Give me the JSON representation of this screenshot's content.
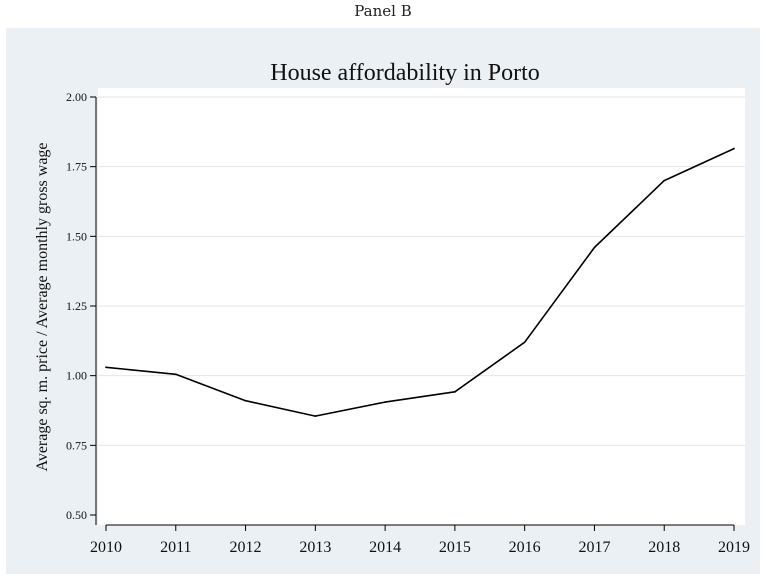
{
  "panel_label": "Panel B",
  "chart_data": {
    "type": "line",
    "title": "House affordability in Porto",
    "xlabel": "",
    "ylabel": "Average sq. m. price / Average monthly gross wage",
    "x": [
      2010,
      2011,
      2012,
      2013,
      2014,
      2015,
      2016,
      2017,
      2018,
      2019
    ],
    "y_ticks": [
      "0.50",
      "0.75",
      "1.00",
      "1.25",
      "1.50",
      "1.75",
      "2.00"
    ],
    "x_ticks": [
      "2010",
      "2011",
      "2012",
      "2013",
      "2014",
      "2015",
      "2016",
      "2017",
      "2018",
      "2019"
    ],
    "ylim": [
      0.5,
      2.0
    ],
    "xlim": [
      2010,
      2019
    ],
    "grid": true,
    "series": [
      {
        "values": [
          1.03,
          1.005,
          0.91,
          0.855,
          0.905,
          0.942,
          1.12,
          1.46,
          1.7,
          1.815
        ]
      }
    ],
    "colors": {
      "line": "#000000",
      "background": "#eaf0f4",
      "plot_area": "#ffffff",
      "grid": "#e6e6e6"
    }
  }
}
